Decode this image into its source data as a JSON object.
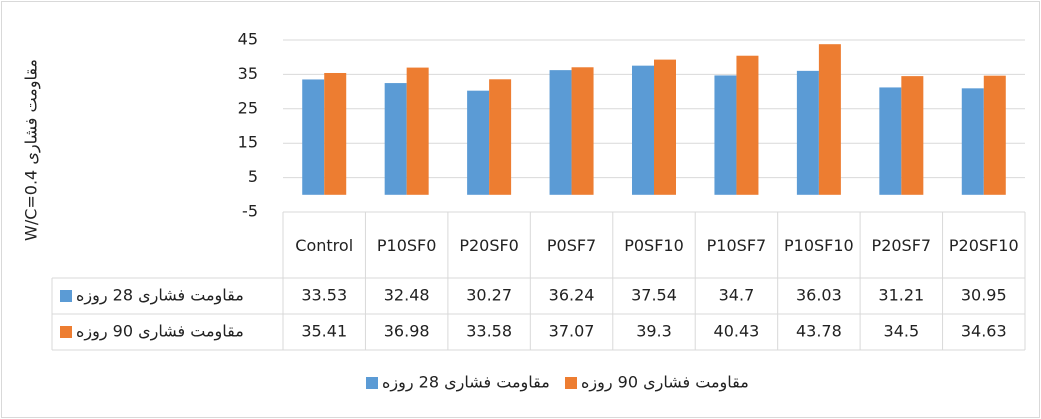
{
  "chart_data": {
    "type": "bar",
    "y_label": "W/C=0.4 مقاومت فشاری",
    "categories": [
      "Control",
      "P10SF0",
      "P20SF0",
      "P0SF7",
      "P0SF10",
      "P10SF7",
      "P10SF10",
      "P20SF7",
      "P20SF10"
    ],
    "series": [
      {
        "name": "مقاومت فشاری 28 روزه",
        "color": "#5b9bd5",
        "values": [
          33.53,
          32.48,
          30.27,
          36.24,
          37.54,
          34.7,
          36.03,
          31.21,
          30.95
        ]
      },
      {
        "name": "مقاومت فشاری 90 روزه",
        "color": "#ed7d31",
        "values": [
          35.41,
          36.98,
          33.58,
          37.07,
          39.3,
          40.43,
          43.78,
          34.5,
          34.63
        ]
      }
    ],
    "ylim": [
      -5,
      45
    ],
    "yticks": [
      -5,
      5,
      15,
      25,
      35,
      45
    ],
    "grid": true,
    "data_table": true,
    "legend": "bottom"
  }
}
